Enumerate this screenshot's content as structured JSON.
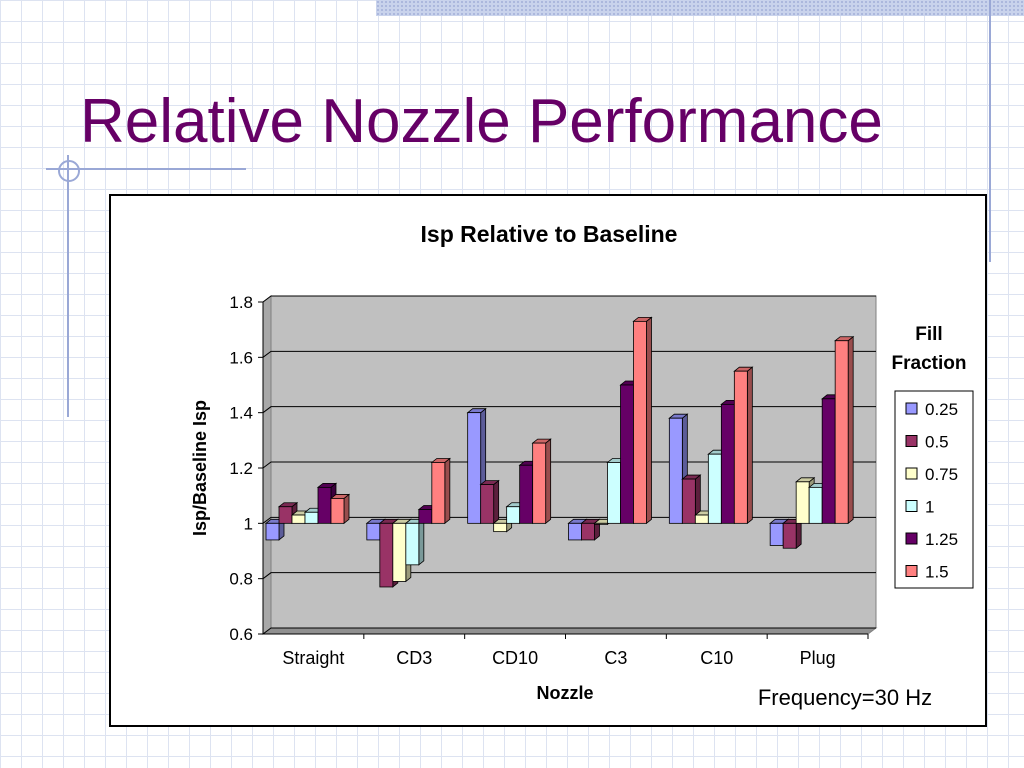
{
  "slide": {
    "title": "Relative Nozzle Performance"
  },
  "chart_data": {
    "type": "bar",
    "title": "Isp Relative to Baseline",
    "xlabel": "Nozzle",
    "ylabel": "Isp/Baseline Isp",
    "ylim": [
      0.6,
      1.8
    ],
    "yticks": [
      "0.6",
      "0.8",
      "1",
      "1.2",
      "1.4",
      "1.6",
      "1.8"
    ],
    "baseline": 1.0,
    "categories": [
      "Straight",
      "CD3",
      "CD10",
      "C3",
      "C10",
      "Plug"
    ],
    "legend_title": [
      "Fill",
      "Fraction"
    ],
    "legend_position": "right",
    "grid": true,
    "annotation": "Frequency=30 Hz",
    "series": [
      {
        "name": "0.25",
        "color": "#9999ff",
        "values": [
          0.94,
          0.94,
          1.4,
          0.94,
          1.38,
          0.92
        ]
      },
      {
        "name": "0.5",
        "color": "#993366",
        "values": [
          1.06,
          0.77,
          1.14,
          0.94,
          1.16,
          0.91
        ]
      },
      {
        "name": "0.75",
        "color": "#ffffcc",
        "values": [
          1.03,
          0.79,
          0.97,
          1.0,
          1.03,
          1.15
        ]
      },
      {
        "name": "1",
        "color": "#ccffff",
        "values": [
          1.04,
          0.85,
          1.06,
          1.22,
          1.25,
          1.13
        ]
      },
      {
        "name": "1.25",
        "color": "#660066",
        "values": [
          1.13,
          1.05,
          1.21,
          1.5,
          1.43,
          1.45
        ]
      },
      {
        "name": "1.5",
        "color": "#ff8080",
        "values": [
          1.09,
          1.22,
          1.29,
          1.73,
          1.55,
          1.66
        ]
      }
    ]
  }
}
